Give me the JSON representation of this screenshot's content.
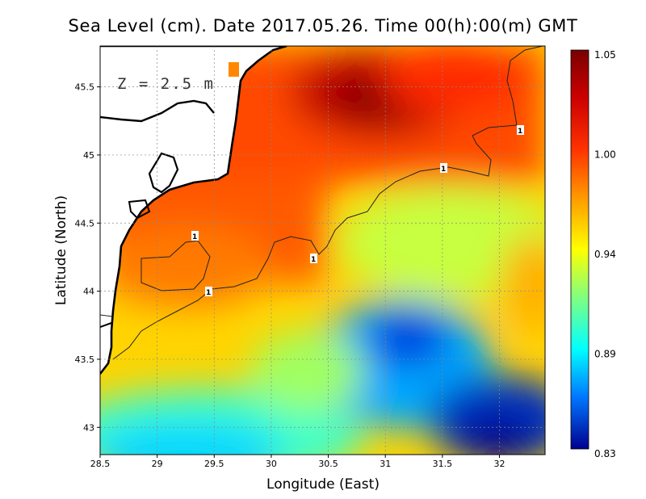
{
  "title": "Sea Level (cm). Date 2017.05.26. Time 00(h):00(m) GMT",
  "depth_label": "Z = 2.5 m",
  "contour_label": "1",
  "map": {
    "type": "heatmap",
    "xlabel": "Longitude (East)",
    "ylabel": "Latitude (North)",
    "xlim": [
      28.5,
      32.4
    ],
    "ylim": [
      42.8,
      45.8
    ],
    "xticks": [
      "28.5",
      "29",
      "29.5",
      "30",
      "30.5",
      "31",
      "31.5",
      "32"
    ],
    "yticks": [
      "43",
      "43.5",
      "44",
      "44.5",
      "45",
      "45.5"
    ],
    "grid": true,
    "colorbar": {
      "min": 0.83,
      "max": 1.05,
      "ticks": [
        "1.05",
        "1.00",
        "0.94",
        "0.89",
        "0.83"
      ],
      "colormap": "jet"
    },
    "contour_level": 1
  },
  "colors": {
    "sea_high": "#7a0000",
    "sea_mid": "#ffff00",
    "sea_low": "#00008f",
    "land": "#ffffff",
    "coastline": "#000000"
  }
}
